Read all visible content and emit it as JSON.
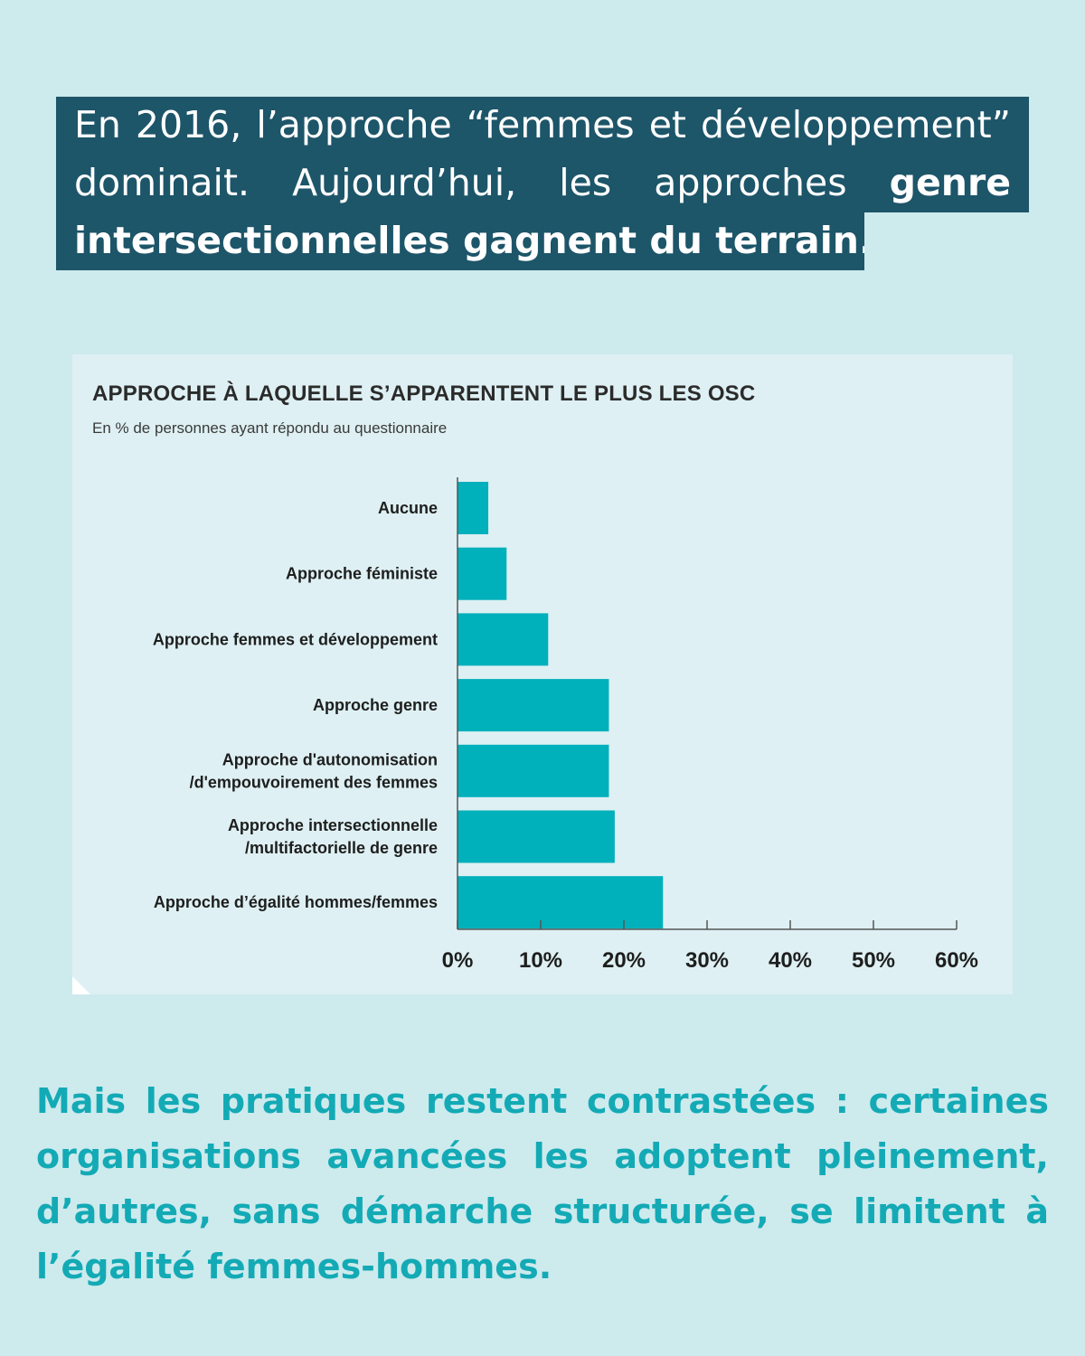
{
  "headline": {
    "line1": "En 2016, l’approche “femmes et développement”",
    "line2_plain": "dominait. Aujourd’hui, les approches ",
    "line2_bold": "genre",
    "line3_bold": "intersectionnelles gagnent du terrain."
  },
  "footer": {
    "text": "Mais les pratiques restent contrastées : certaines organisations avancées les adoptent pleinement, d’autres, sans démarche structurée, se limitent à l’égalité femmes-hommes."
  },
  "colors": {
    "background": "#cdeaed",
    "headline_bg": "#1d5569",
    "bar": "#00b0bb",
    "footer_text": "#13aab5"
  },
  "chart_data": {
    "type": "bar",
    "orientation": "horizontal",
    "title": "APPROCHE À LAQUELLE S’APPARENTENT LE PLUS LES OSC",
    "subtitle": "En % de personnes ayant répondu au questionnaire",
    "categories": [
      [
        "Aucune"
      ],
      [
        "Approche féministe"
      ],
      [
        "Approche femmes et développement"
      ],
      [
        "Approche genre"
      ],
      [
        "Approche d'autonomisation",
        "/d'empouvoirement des femmes"
      ],
      [
        "Approche intersectionnelle",
        "/multifactorielle de genre"
      ],
      [
        "Approche d’égalité hommes/femmes"
      ]
    ],
    "values": [
      3.7,
      5.9,
      10.9,
      18.2,
      18.2,
      18.9,
      24.7
    ],
    "xlim": [
      0,
      60
    ],
    "xticks": [
      "0%",
      "10%",
      "20%",
      "30%",
      "40%",
      "50%",
      "60%"
    ],
    "grid": false,
    "legend": "none"
  }
}
